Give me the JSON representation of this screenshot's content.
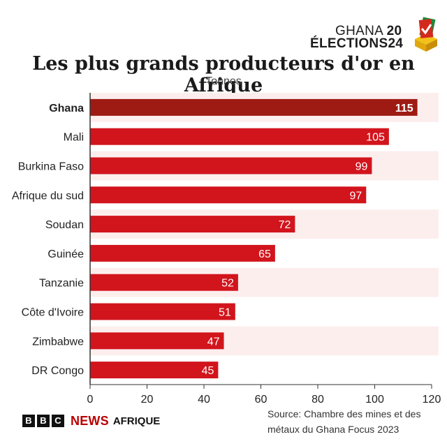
{
  "branding": {
    "line1": "GHANA",
    "line1_digits": "20",
    "line2": "ÉLECTIONS",
    "line2_digits": "24",
    "icon": "ballot-box-check-icon"
  },
  "footer": {
    "logo_letters": [
      "B",
      "B",
      "C"
    ],
    "news": "NEWS",
    "section": "AFRIQUE",
    "source_line1": "Source: Chambre des mines et des",
    "source_line2": "métaux du Ghana  Focus 2023"
  },
  "colors": {
    "highlight_bar": "#9e1b14",
    "bar": "#d2141c",
    "band": "#fdeeee",
    "axis": "#333333",
    "brand_red": "#b80000"
  },
  "chart_data": {
    "type": "bar",
    "orientation": "horizontal",
    "title": "Les plus grands producteurs d'or en Afrique",
    "subtitle": "Tonnes",
    "categories": [
      "Ghana",
      "Mali",
      "Burkina Faso",
      "Afrique du sud",
      "Soudan",
      "Guinée",
      "Tanzanie",
      "Côte d'Ivoire",
      "Zimbabwe",
      "DR Congo"
    ],
    "values": [
      115,
      105,
      99,
      97,
      72,
      65,
      52,
      51,
      47,
      45
    ],
    "highlight": "Ghana",
    "xlim": [
      0,
      120
    ],
    "xticks": [
      0,
      20,
      40,
      60,
      80,
      100,
      120
    ],
    "grid": false,
    "data_labels": true
  }
}
